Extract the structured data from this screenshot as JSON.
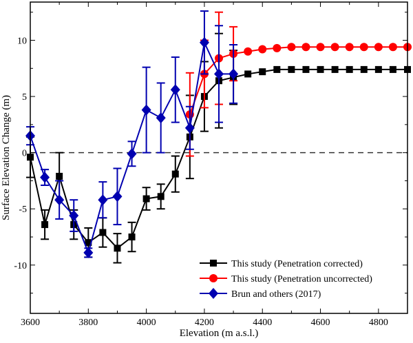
{
  "chart_data": {
    "type": "line",
    "title": "",
    "xlabel": "Elevation (m a.s.l.)",
    "ylabel": "Surface Elevation Change (m)",
    "xlim": [
      3600,
      4900
    ],
    "ylim": [
      -14.3,
      13.4
    ],
    "xticks": [
      3600,
      3800,
      4000,
      4200,
      4400,
      4600,
      4800
    ],
    "yticks": [
      -10,
      -5,
      0,
      5,
      10
    ],
    "reference_line": 0,
    "legend_position": "bottom-right",
    "series": [
      {
        "name": "This study (Penetration corrected)",
        "color": "#000000",
        "marker": "square",
        "x": [
          3600,
          3650,
          3700,
          3750,
          3800,
          3850,
          3900,
          3950,
          4000,
          4050,
          4100,
          4150,
          4200,
          4250,
          4300,
          4350,
          4400,
          4450,
          4500,
          4550,
          4600,
          4650,
          4700,
          4750,
          4800,
          4850,
          4900
        ],
        "y": [
          -0.4,
          -6.4,
          -2.1,
          -6.4,
          -8.0,
          -7.1,
          -8.5,
          -7.5,
          -4.1,
          -3.9,
          -1.9,
          1.4,
          5.0,
          6.4,
          6.7,
          7.0,
          7.2,
          7.4,
          7.4,
          7.4,
          7.4,
          7.4,
          7.4,
          7.4,
          7.4,
          7.4,
          7.4
        ],
        "err": [
          1.8,
          1.3,
          2.1,
          1.3,
          1.3,
          1.3,
          1.3,
          1.3,
          1.0,
          1.1,
          1.6,
          3.7,
          3.1,
          4.2,
          2.4,
          null,
          null,
          null,
          null,
          null,
          null,
          null,
          null,
          null,
          null,
          null,
          null
        ]
      },
      {
        "name": "This study (Penetration uncorrected)",
        "color": "#ff0000",
        "marker": "circle",
        "x": [
          4150,
          4200,
          4250,
          4300,
          4350,
          4400,
          4450,
          4500,
          4550,
          4600,
          4650,
          4700,
          4750,
          4800,
          4850,
          4900
        ],
        "y": [
          3.4,
          7.0,
          8.4,
          8.8,
          9.0,
          9.2,
          9.3,
          9.4,
          9.4,
          9.4,
          9.4,
          9.4,
          9.4,
          9.4,
          9.4,
          9.4
        ],
        "err": [
          3.7,
          3.0,
          4.1,
          2.4,
          null,
          null,
          null,
          null,
          null,
          null,
          null,
          null,
          null,
          null,
          null,
          null
        ]
      },
      {
        "name": "Brun and others (2017)",
        "color": "#0000b0",
        "marker": "diamond",
        "x": [
          3600,
          3650,
          3700,
          3750,
          3800,
          3850,
          3900,
          3950,
          4000,
          4050,
          4100,
          4150,
          4200,
          4250,
          4300
        ],
        "y": [
          1.5,
          -2.2,
          -4.2,
          -5.6,
          -8.9,
          -4.2,
          -3.9,
          -0.1,
          3.8,
          3.1,
          5.6,
          2.2,
          9.8,
          7.0,
          7.0
        ],
        "err": [
          0.8,
          0.7,
          1.7,
          1.4,
          0.4,
          1.6,
          2.5,
          1.1,
          3.8,
          3.1,
          2.9,
          1.9,
          2.8,
          4.3,
          2.6
        ]
      }
    ]
  }
}
